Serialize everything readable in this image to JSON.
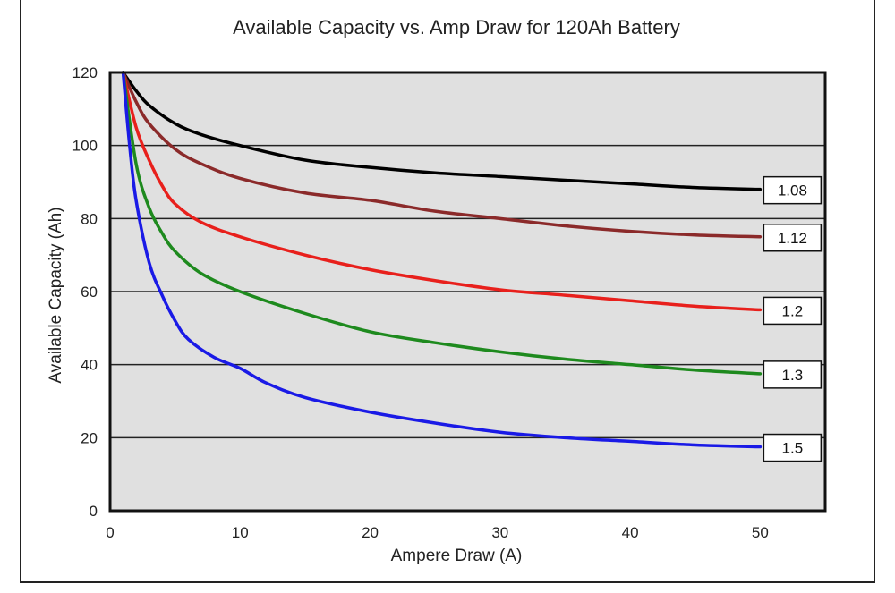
{
  "chart_data": {
    "type": "line",
    "title": "Available Capacity vs. Amp Draw for 120Ah Battery",
    "xlabel": "Ampere Draw (A)",
    "ylabel": "Available Capacity (Ah)",
    "xlim": [
      0,
      55
    ],
    "ylim": [
      0,
      120
    ],
    "xticks": [
      0,
      10,
      20,
      30,
      40,
      50
    ],
    "yticks": [
      0,
      20,
      40,
      60,
      80,
      100,
      120
    ],
    "grid": "horizontal",
    "colors": {
      "plot_bg": "#e0e0e0",
      "grid": "#222222",
      "text": "#222222"
    },
    "series": [
      {
        "name": "1.08",
        "color": "#000000",
        "x": [
          1,
          2,
          3,
          5,
          7,
          10,
          15,
          20,
          25,
          30,
          35,
          40,
          45,
          50
        ],
        "y": [
          120,
          115,
          111,
          106,
          103,
          100,
          96,
          94,
          92.5,
          91.5,
          90.5,
          89.5,
          88.5,
          88
        ]
      },
      {
        "name": "1.12",
        "color": "#8b2a2a",
        "x": [
          1,
          2,
          3,
          5,
          7,
          10,
          15,
          20,
          25,
          30,
          35,
          40,
          45,
          50
        ],
        "y": [
          120,
          112,
          106,
          99,
          95,
          91,
          87,
          85,
          82,
          80,
          78,
          76.5,
          75.5,
          75
        ]
      },
      {
        "name": "1.2",
        "color": "#e8201c",
        "x": [
          1,
          2,
          3,
          4,
          5,
          7,
          10,
          15,
          20,
          25,
          30,
          35,
          40,
          45,
          50
        ],
        "y": [
          120,
          105,
          96,
          89,
          84,
          79,
          75,
          70,
          66,
          63,
          60.5,
          59,
          57.5,
          56,
          55
        ]
      },
      {
        "name": "1.3",
        "color": "#1e8a1e",
        "x": [
          1,
          2,
          3,
          4,
          5,
          7,
          10,
          15,
          20,
          25,
          30,
          35,
          40,
          45,
          50
        ],
        "y": [
          120,
          95,
          83,
          76,
          71,
          65,
          60,
          54,
          49,
          46,
          43.5,
          41.5,
          40,
          38.5,
          37.5
        ]
      },
      {
        "name": "1.5",
        "color": "#1a1ae6",
        "x": [
          1,
          1.5,
          2,
          3,
          4,
          5,
          6,
          8,
          10,
          12,
          15,
          20,
          25,
          30,
          35,
          40,
          45,
          50
        ],
        "y": [
          120,
          100,
          85,
          68,
          59,
          52,
          47,
          42,
          39,
          35,
          31,
          27,
          24,
          21.5,
          20,
          19,
          18,
          17.5
        ]
      }
    ]
  }
}
